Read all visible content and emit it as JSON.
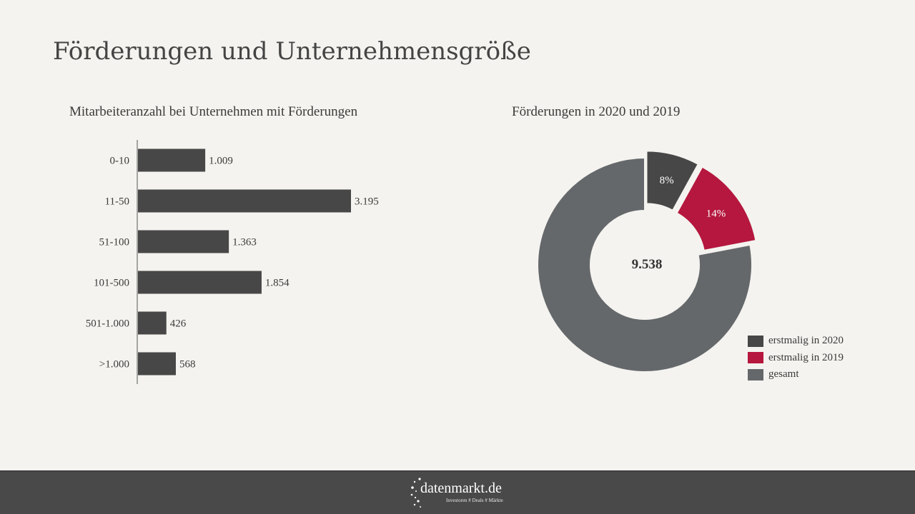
{
  "page": {
    "title": "Förderungen und Unternehmensgröße"
  },
  "bar_chart_title": "Mitarbeiteranzahl bei Unternehmen mit Förderungen",
  "donut_chart_title": "Förderungen in 2020 und 2019",
  "chart_data": [
    {
      "type": "bar",
      "orientation": "horizontal",
      "title": "Mitarbeiteranzahl bei Unternehmen mit Förderungen",
      "categories": [
        "0-10",
        "11-50",
        "51-100",
        "101-500",
        "501-1.000",
        ">1.000"
      ],
      "values": [
        1009,
        3195,
        1363,
        1854,
        426,
        568
      ],
      "value_labels": [
        "1.009",
        "3.195",
        "1.363",
        "1.854",
        "426",
        "568"
      ],
      "xlim": [
        0,
        3500
      ],
      "bar_color": "#474747",
      "grid": false
    },
    {
      "type": "pie",
      "variant": "donut",
      "title": "Förderungen in 2020 und 2019",
      "center_label": "9.538",
      "slices": [
        {
          "name": "erstmalig in 2020",
          "percent": 8,
          "label": "8%",
          "color": "#474747",
          "exploded": true
        },
        {
          "name": "erstmalig in 2019",
          "percent": 14,
          "label": "14%",
          "color": "#b5173e",
          "exploded": true
        },
        {
          "name": "gesamt",
          "percent": 78,
          "label": "",
          "color": "#65686b",
          "exploded": false
        }
      ],
      "legend": {
        "placement": "bottom-right",
        "entries": [
          "erstmalig in 2020",
          "erstmalig in 2019",
          "gesamt"
        ]
      }
    }
  ],
  "footer": {
    "logo_text": "datenmarkt.de",
    "tagline": "Investoren # Deals # Märkte",
    "background": "#494949"
  }
}
